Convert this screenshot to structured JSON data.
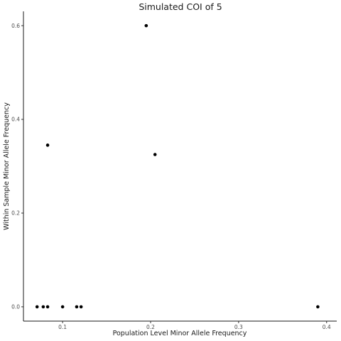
{
  "chart_data": {
    "type": "scatter",
    "title": "Simulated COI of 5",
    "xlabel": "Population Level Minor Allele Frequency",
    "ylabel": "Within Sample Minor Allele Frequency",
    "xlim": [
      0.0555,
      0.4115
    ],
    "ylim": [
      -0.0305,
      0.6305
    ],
    "x_ticks": [
      0.1,
      0.2,
      0.3,
      0.4
    ],
    "x_tick_labels": [
      "0.1",
      "0.2",
      "0.3",
      "0.4"
    ],
    "y_ticks": [
      0.0,
      0.2,
      0.4,
      0.6
    ],
    "y_tick_labels": [
      "0.0",
      "0.2",
      "0.4",
      "0.6"
    ],
    "grid": false,
    "legend": "none",
    "point_color": "#000000",
    "points": [
      {
        "x": 0.071,
        "y": 0.0
      },
      {
        "x": 0.078,
        "y": 0.0
      },
      {
        "x": 0.083,
        "y": 0.0
      },
      {
        "x": 0.1,
        "y": 0.0
      },
      {
        "x": 0.116,
        "y": 0.0
      },
      {
        "x": 0.121,
        "y": 0.0
      },
      {
        "x": 0.39,
        "y": 0.0
      },
      {
        "x": 0.083,
        "y": 0.345
      },
      {
        "x": 0.195,
        "y": 0.6
      },
      {
        "x": 0.205,
        "y": 0.325
      }
    ]
  }
}
